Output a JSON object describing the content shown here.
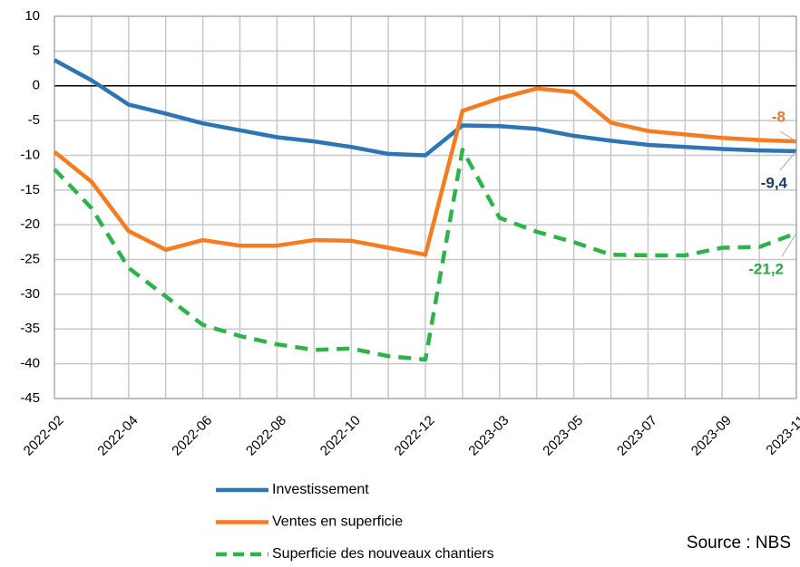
{
  "chart_data": {
    "type": "line",
    "categories": [
      "2022-02",
      null,
      "2022-04",
      null,
      "2022-06",
      null,
      "2022-08",
      null,
      "2022-10",
      null,
      "2022-12",
      null,
      "2023-03",
      null,
      "2023-05",
      null,
      "2023-07",
      null,
      "2023-09",
      null,
      "2023-11"
    ],
    "series": [
      {
        "name": "Investissement",
        "color": "#2e75b6",
        "end_label": "-9,4",
        "label_color": "#1f3864",
        "values": [
          3.7,
          0.8,
          -2.7,
          -4.0,
          -5.4,
          -6.4,
          -7.4,
          -8.0,
          -8.8,
          -9.8,
          -10.0,
          -5.7,
          -5.8,
          -6.2,
          -7.2,
          -7.9,
          -8.5,
          -8.8,
          -9.1,
          -9.3,
          -9.4
        ]
      },
      {
        "name": "Ventes en superficie",
        "color": "#f57c22",
        "end_label": "-8",
        "label_color": "#e87a2a",
        "values": [
          -9.5,
          -13.8,
          -20.9,
          -23.6,
          -22.2,
          -23.0,
          -23.0,
          -22.2,
          -22.3,
          -23.3,
          -24.3,
          -3.6,
          -1.8,
          -0.4,
          -0.9,
          -5.3,
          -6.5,
          -7.0,
          -7.5,
          -7.8,
          -8.0
        ]
      },
      {
        "name": "Superficie des nouveaux chantiers",
        "color": "#2db34a",
        "dashed": true,
        "end_label": "-21,2",
        "label_color": "#2aa845",
        "values": [
          -12.0,
          -17.6,
          -26.2,
          -30.3,
          -34.4,
          -36.0,
          -37.2,
          -38.0,
          -37.8,
          -38.9,
          -39.4,
          -9.2,
          -19.0,
          -21.0,
          -22.5,
          -24.3,
          -24.4,
          -24.4,
          -23.3,
          -23.2,
          -21.2
        ]
      }
    ],
    "ylim": [
      -45,
      10
    ],
    "yticks": [
      -45,
      -40,
      -35,
      -30,
      -25,
      -20,
      -15,
      -10,
      -5,
      0,
      5,
      10
    ],
    "grid": true,
    "source": "Source : NBS"
  }
}
